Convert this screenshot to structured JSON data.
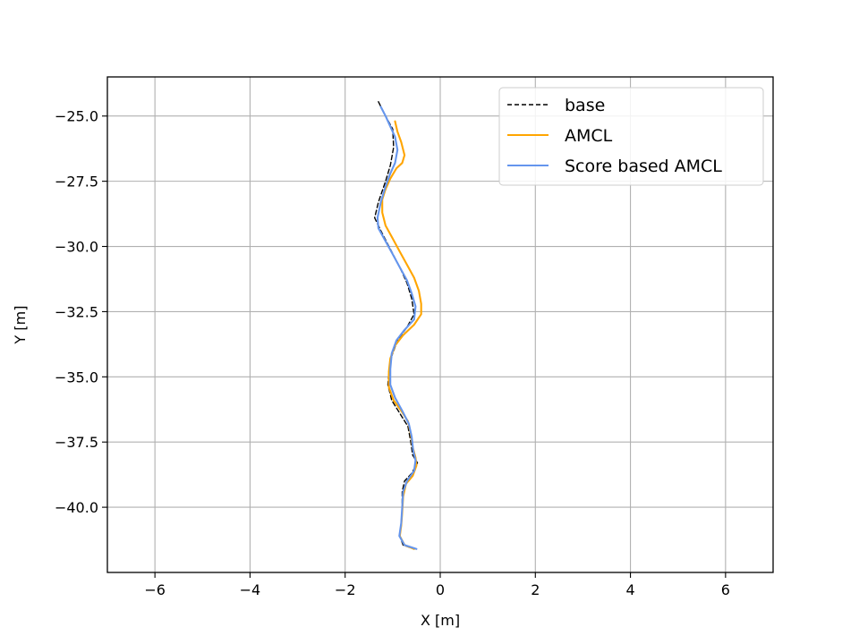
{
  "chart_data": {
    "type": "line",
    "title": "",
    "xlabel": "X [m]",
    "ylabel": "Y [m]",
    "xlim": [
      -7,
      7
    ],
    "ylim": [
      -42.5,
      -23.5
    ],
    "x_ticks": [
      -6,
      -4,
      -2,
      0,
      2,
      4,
      6
    ],
    "x_tick_labels": [
      "−6",
      "−4",
      "−2",
      "0",
      "2",
      "4",
      "6"
    ],
    "y_ticks": [
      -25.0,
      -27.5,
      -30.0,
      -32.5,
      -35.0,
      -37.5,
      -40.0
    ],
    "y_tick_labels": [
      "−25.0",
      "−27.5",
      "−30.0",
      "−32.5",
      "−35.0",
      "−37.5",
      "−40.0"
    ],
    "grid": true,
    "legend_position": "upper right",
    "series": [
      {
        "name": "base",
        "color": "#000000",
        "style": "dashed",
        "points": [
          [
            -1.3,
            -24.45
          ],
          [
            -1.15,
            -25.0
          ],
          [
            -1.0,
            -25.5
          ],
          [
            -0.98,
            -26.2
          ],
          [
            -1.05,
            -26.9
          ],
          [
            -1.15,
            -27.5
          ],
          [
            -1.3,
            -28.3
          ],
          [
            -1.38,
            -28.9
          ],
          [
            -1.25,
            -29.4
          ],
          [
            -1.05,
            -30.1
          ],
          [
            -0.85,
            -30.8
          ],
          [
            -0.7,
            -31.4
          ],
          [
            -0.6,
            -32.0
          ],
          [
            -0.55,
            -32.6
          ],
          [
            -0.7,
            -33.1
          ],
          [
            -0.9,
            -33.6
          ],
          [
            -1.02,
            -34.2
          ],
          [
            -1.08,
            -34.8
          ],
          [
            -1.1,
            -35.3
          ],
          [
            -1.02,
            -35.9
          ],
          [
            -0.85,
            -36.4
          ],
          [
            -0.68,
            -36.9
          ],
          [
            -0.62,
            -37.5
          ],
          [
            -0.58,
            -38.0
          ],
          [
            -0.48,
            -38.3
          ],
          [
            -0.6,
            -38.7
          ],
          [
            -0.75,
            -39.0
          ],
          [
            -0.8,
            -39.4
          ],
          [
            -0.8,
            -40.0
          ],
          [
            -0.82,
            -40.6
          ],
          [
            -0.85,
            -41.1
          ],
          [
            -0.78,
            -41.45
          ],
          [
            -0.55,
            -41.6
          ]
        ]
      },
      {
        "name": "AMCL",
        "color": "#ffa500",
        "style": "solid",
        "points": [
          [
            -0.95,
            -25.2
          ],
          [
            -0.9,
            -25.6
          ],
          [
            -0.82,
            -26.0
          ],
          [
            -0.75,
            -26.5
          ],
          [
            -0.8,
            -26.8
          ],
          [
            -0.92,
            -27.0
          ],
          [
            -1.05,
            -27.4
          ],
          [
            -1.15,
            -27.8
          ],
          [
            -1.22,
            -28.2
          ],
          [
            -1.22,
            -28.7
          ],
          [
            -1.15,
            -29.2
          ],
          [
            -1.0,
            -29.7
          ],
          [
            -0.85,
            -30.2
          ],
          [
            -0.7,
            -30.7
          ],
          [
            -0.55,
            -31.2
          ],
          [
            -0.45,
            -31.7
          ],
          [
            -0.4,
            -32.2
          ],
          [
            -0.4,
            -32.6
          ],
          [
            -0.55,
            -33.0
          ],
          [
            -0.78,
            -33.4
          ],
          [
            -0.95,
            -33.8
          ],
          [
            -1.05,
            -34.3
          ],
          [
            -1.08,
            -34.8
          ],
          [
            -1.08,
            -35.4
          ],
          [
            -0.98,
            -35.9
          ],
          [
            -0.82,
            -36.3
          ],
          [
            -0.68,
            -36.7
          ],
          [
            -0.62,
            -37.2
          ],
          [
            -0.58,
            -37.7
          ],
          [
            -0.52,
            -38.1
          ],
          [
            -0.5,
            -38.4
          ],
          [
            -0.58,
            -38.8
          ],
          [
            -0.72,
            -39.1
          ],
          [
            -0.78,
            -39.6
          ],
          [
            -0.8,
            -40.2
          ],
          [
            -0.82,
            -40.7
          ],
          [
            -0.85,
            -41.1
          ],
          [
            -0.75,
            -41.45
          ],
          [
            -0.55,
            -41.6
          ]
        ]
      },
      {
        "name": "Score based AMCL",
        "color": "#6495ed",
        "style": "solid",
        "points": [
          [
            -1.25,
            -24.65
          ],
          [
            -1.15,
            -25.0
          ],
          [
            -1.05,
            -25.4
          ],
          [
            -0.95,
            -25.8
          ],
          [
            -0.9,
            -26.3
          ],
          [
            -0.95,
            -26.8
          ],
          [
            -1.05,
            -27.2
          ],
          [
            -1.15,
            -27.7
          ],
          [
            -1.25,
            -28.3
          ],
          [
            -1.32,
            -28.9
          ],
          [
            -1.3,
            -29.3
          ],
          [
            -1.15,
            -29.8
          ],
          [
            -1.0,
            -30.3
          ],
          [
            -0.85,
            -30.8
          ],
          [
            -0.7,
            -31.3
          ],
          [
            -0.6,
            -31.8
          ],
          [
            -0.52,
            -32.3
          ],
          [
            -0.55,
            -32.8
          ],
          [
            -0.75,
            -33.2
          ],
          [
            -0.92,
            -33.6
          ],
          [
            -1.02,
            -34.1
          ],
          [
            -1.05,
            -34.7
          ],
          [
            -1.05,
            -35.3
          ],
          [
            -0.95,
            -35.8
          ],
          [
            -0.8,
            -36.3
          ],
          [
            -0.66,
            -36.8
          ],
          [
            -0.6,
            -37.3
          ],
          [
            -0.57,
            -37.8
          ],
          [
            -0.52,
            -38.2
          ],
          [
            -0.55,
            -38.6
          ],
          [
            -0.7,
            -39.0
          ],
          [
            -0.78,
            -39.4
          ],
          [
            -0.8,
            -40.0
          ],
          [
            -0.82,
            -40.6
          ],
          [
            -0.86,
            -41.1
          ],
          [
            -0.75,
            -41.45
          ],
          [
            -0.5,
            -41.6
          ]
        ]
      }
    ]
  }
}
